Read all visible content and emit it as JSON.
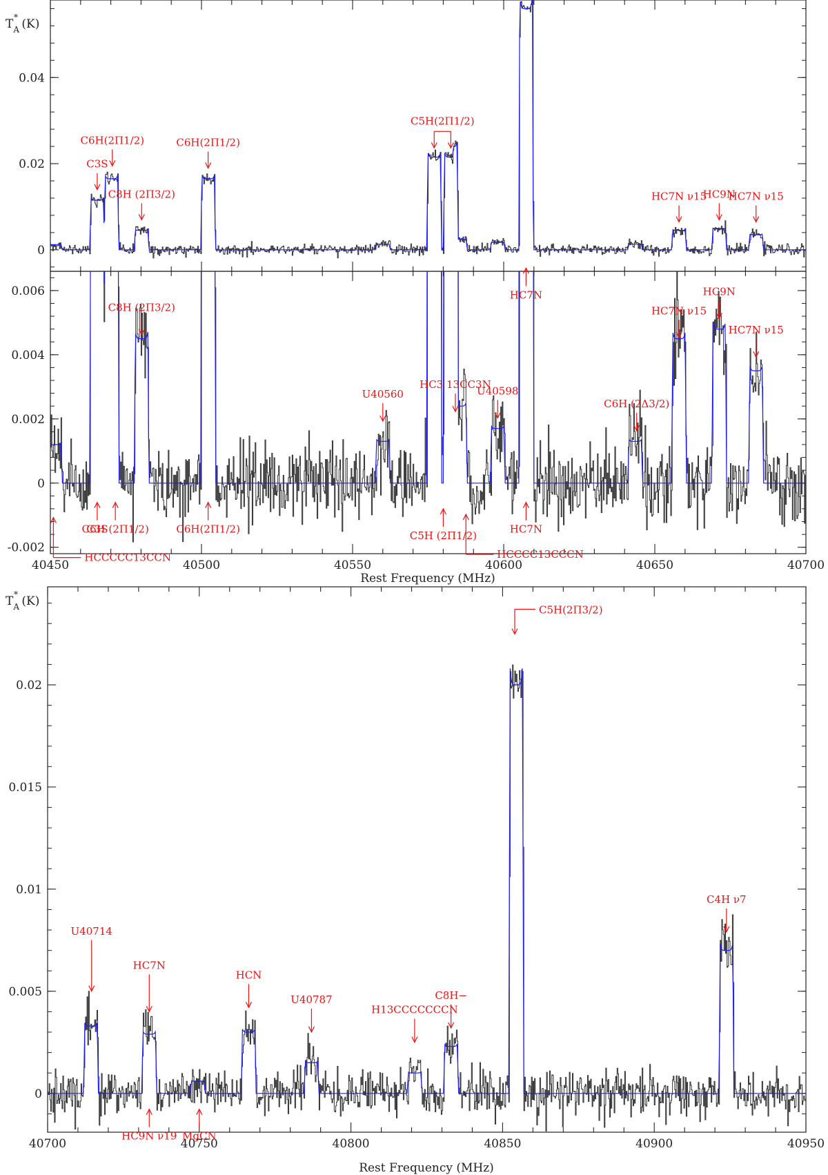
{
  "chart_data": [
    {
      "panel": "top",
      "type": "line",
      "ylabel": "T*A (K)",
      "xlim": [
        40450,
        40700
      ],
      "ylim": [
        -0.005,
        0.058
      ],
      "yticks": [
        {
          "v": 0,
          "label": "0"
        },
        {
          "v": 0.02,
          "label": "0.02"
        },
        {
          "v": 0.04,
          "label": "0.04"
        }
      ],
      "series": [
        {
          "role": "observed",
          "color": "#333333"
        },
        {
          "role": "model",
          "color": "#1a1aff"
        }
      ],
      "lines": [
        {
          "f": 40465.5,
          "h": 0.0115
        },
        {
          "f": 40470.2,
          "h": 0.0165
        },
        {
          "f": 40480.2,
          "h": 0.0045
        },
        {
          "f": 40502.2,
          "h": 0.0165
        },
        {
          "f": 40577.0,
          "h": 0.0215
        },
        {
          "f": 40582.5,
          "h": 0.0215
        },
        {
          "f": 40607.4,
          "h": 0.056
        },
        {
          "f": 40658.0,
          "h": 0.0045
        },
        {
          "f": 40671.3,
          "h": 0.0048
        },
        {
          "f": 40683.5,
          "h": 0.0035
        }
      ],
      "annotations": [
        {
          "text": "C6H(2Π1/2)",
          "parts": [
            [
              "C",
              0
            ],
            [
              "6",
              1
            ],
            [
              "H(",
              0
            ],
            [
              "2",
              2
            ],
            [
              "Π",
              0
            ],
            [
              "1/2",
              1
            ],
            [
              ")",
              0
            ]
          ],
          "f": 40470.5,
          "h": 0.0185
        },
        {
          "text": "C3S",
          "parts": [
            [
              "C",
              0
            ],
            [
              "3",
              1
            ],
            [
              "S",
              0
            ]
          ],
          "f": 40465.5,
          "h": 0.013
        },
        {
          "text": "C8H (2Π3/2)",
          "parts": [
            [
              "C",
              0
            ],
            [
              "8",
              1
            ],
            [
              "H",
              0
            ]
          ],
          "parts2": [
            [
              "(",
              0
            ],
            [
              "2",
              2
            ],
            [
              "Π",
              0
            ],
            [
              "3/2",
              1
            ],
            [
              ")",
              0
            ]
          ],
          "f": 40480.2,
          "h": 0.006
        },
        {
          "text": "C6H(2Π1/2)",
          "parts": [
            [
              "C",
              0
            ],
            [
              "6",
              1
            ],
            [
              "H(",
              0
            ],
            [
              "2",
              2
            ],
            [
              "Π",
              0
            ],
            [
              "1/2",
              1
            ],
            [
              ")",
              0
            ]
          ],
          "f": 40502.2,
          "h": 0.018
        },
        {
          "text": "C5H(2Π1/2)",
          "parts": [
            [
              "C",
              0
            ],
            [
              "5",
              1
            ],
            [
              "H(",
              0
            ],
            [
              "2",
              2
            ],
            [
              "Π",
              0
            ],
            [
              "1/2",
              1
            ],
            [
              ")",
              0
            ]
          ],
          "f": 40580.0,
          "h": 0.023
        },
        {
          "text": "HC7N",
          "parts": [
            [
              "HC",
              0
            ],
            [
              "7",
              1
            ],
            [
              "N",
              0
            ]
          ],
          "f": 40607.4,
          "h": -0.002
        },
        {
          "text": "HC7N ν15",
          "parts": [
            [
              "HC",
              0
            ],
            [
              "7",
              1
            ],
            [
              "N  ν",
              0
            ],
            [
              "15",
              1
            ]
          ],
          "f": 40658.0,
          "h": 0.0055
        },
        {
          "text": "HC9N",
          "parts": [
            [
              "HC",
              0
            ],
            [
              "9",
              1
            ],
            [
              "N",
              0
            ]
          ],
          "f": 40671.3,
          "h": 0.006
        },
        {
          "text": "HC7N ν15",
          "parts": [
            [
              "HC",
              0
            ],
            [
              "7",
              1
            ],
            [
              "N  ν",
              0
            ],
            [
              "15",
              1
            ]
          ],
          "f": 40683.5,
          "h": 0.0055
        }
      ]
    },
    {
      "panel": "middle",
      "type": "line",
      "xlabel": "Rest Frequency (MHz)",
      "xlim": [
        40450,
        40700
      ],
      "ylim": [
        -0.0022,
        0.0066
      ],
      "xticks": [
        {
          "v": 40450,
          "label": "40450"
        },
        {
          "v": 40500,
          "label": "40500"
        },
        {
          "v": 40550,
          "label": "40550"
        },
        {
          "v": 40600,
          "label": "40600"
        },
        {
          "v": 40650,
          "label": "40650"
        },
        {
          "v": 40700,
          "label": "40700"
        }
      ],
      "yticks": [
        {
          "v": -0.002,
          "label": "-0.002"
        },
        {
          "v": 0,
          "label": "0"
        },
        {
          "v": 0.002,
          "label": "0.002"
        },
        {
          "v": 0.004,
          "label": "0.004"
        },
        {
          "v": 0.006,
          "label": "0.006"
        }
      ],
      "lines": [
        {
          "f": 40451.5,
          "h": 0.0012
        },
        {
          "f": 40480.2,
          "h": 0.0042
        },
        {
          "f": 40560.0,
          "h": 0.0013
        },
        {
          "f": 40585.5,
          "h": 0.0024
        },
        {
          "f": 40598.0,
          "h": 0.0017
        },
        {
          "f": 40643.5,
          "h": 0.0013
        },
        {
          "f": 40658.0,
          "h": 0.004
        },
        {
          "f": 40671.3,
          "h": 0.0045
        },
        {
          "f": 40683.5,
          "h": 0.0032
        }
      ],
      "annotations": [
        {
          "text": "C8H (2Π3/2)",
          "f": 40480.2,
          "h": 0.0045
        },
        {
          "text": "U40560",
          "f": 40560.0,
          "h": 0.0018
        },
        {
          "text": "HC3 13CC3N",
          "f": 40584.0,
          "h": 0.0021
        },
        {
          "text": "U40598",
          "f": 40598.0,
          "h": 0.0019
        },
        {
          "text": "C6H (2Δ3/2)",
          "f": 40644.0,
          "h": 0.0015
        },
        {
          "text": "HC7N ν15",
          "f": 40658.0,
          "h": 0.0044
        },
        {
          "text": "HC9N",
          "f": 40671.3,
          "h": 0.005
        },
        {
          "text": "HC7N ν15",
          "f": 40683.5,
          "h": 0.0038
        },
        {
          "text": "C3S",
          "f": 40465.5,
          "h": -0.0003
        },
        {
          "text": "C6H (2Π1/2)",
          "f": 40471.5,
          "h": -0.0003
        },
        {
          "text": "C6H(2Π1/2)",
          "f": 40502.2,
          "h": -0.0003
        },
        {
          "text": "C5H (2Π1/2)",
          "f": 40580.0,
          "h": -0.0005
        },
        {
          "text": "HC7N",
          "f": 40607.4,
          "h": -0.0003
        },
        {
          "text": "HCCCCC13CCN",
          "f": 40451.0,
          "h": -0.0006
        },
        {
          "text": "HCCCC13CCCN",
          "f": 40587.5,
          "h": -0.0005
        }
      ]
    },
    {
      "panel": "bottom",
      "type": "line",
      "ylabel": "T*A (K)",
      "xlabel": "Rest Frequency (MHz)",
      "xlim": [
        40700,
        40950
      ],
      "ylim": [
        -0.0019,
        0.0248
      ],
      "xticks": [
        {
          "v": 40700,
          "label": "40700"
        },
        {
          "v": 40750,
          "label": "40750"
        },
        {
          "v": 40800,
          "label": "40800"
        },
        {
          "v": 40850,
          "label": "40850"
        },
        {
          "v": 40900,
          "label": "40900"
        },
        {
          "v": 40950,
          "label": "40950"
        }
      ],
      "yticks": [
        {
          "v": 0,
          "label": "0"
        },
        {
          "v": 0.005,
          "label": "0.005"
        },
        {
          "v": 0.01,
          "label": "0.01"
        },
        {
          "v": 0.015,
          "label": "0.015"
        },
        {
          "v": 0.02,
          "label": "0.02"
        }
      ],
      "lines": [
        {
          "f": 40714.3,
          "h": 0.0033
        },
        {
          "f": 40733.5,
          "h": 0.0029
        },
        {
          "f": 40766.3,
          "h": 0.003
        },
        {
          "f": 40787.0,
          "h": 0.0015
        },
        {
          "f": 40821.0,
          "h": 0.001
        },
        {
          "f": 40833.0,
          "h": 0.0023
        },
        {
          "f": 40854.5,
          "h": 0.02
        },
        {
          "f": 40923.8,
          "h": 0.007
        },
        {
          "f": 40749.5,
          "h": 0.0006
        }
      ],
      "annotations": [
        {
          "text": "C5H(2Π3/2)",
          "f": 40854.0,
          "h": 0.0235
        },
        {
          "text": "C4H ν7",
          "f": 40923.8,
          "h": 0.0077
        },
        {
          "text": "U40714",
          "f": 40714.5,
          "h": 0.0048
        },
        {
          "text": "HC7N",
          "f": 40733.5,
          "h": 0.0038
        },
        {
          "text": "HCN",
          "f": 40766.3,
          "h": 0.004
        },
        {
          "text": "U40787",
          "f": 40787.0,
          "h": 0.0028
        },
        {
          "text": "H13CCCCCCCN",
          "f": 40821.0,
          "h": 0.0023
        },
        {
          "text": "C8H−",
          "f": 40833.0,
          "h": 0.003
        },
        {
          "text": "HC9N ν19",
          "f": 40733.5,
          "h": -0.0003
        },
        {
          "text": "MgCN",
          "f": 40750.0,
          "h": -0.0003
        }
      ]
    }
  ]
}
